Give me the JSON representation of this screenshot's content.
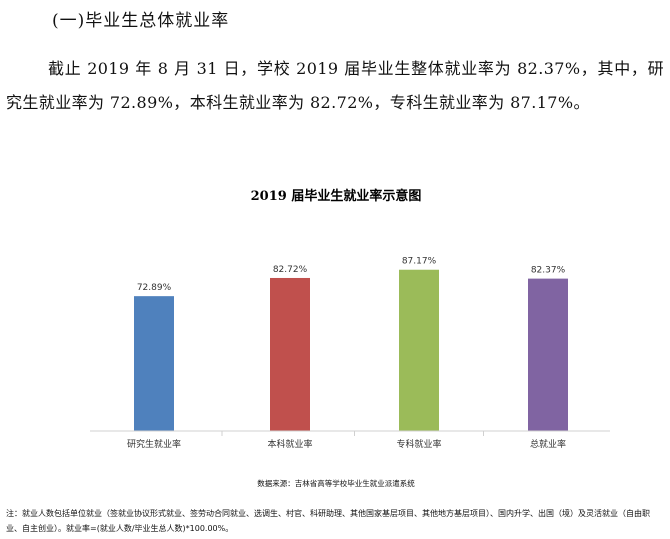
{
  "section": {
    "heading": "(一)毕业生总体就业率",
    "paragraph": "截止 2019 年 8 月 31 日，学校 2019 届毕业生整体就业率为 82.37%，其中，研究生就业率为 72.89%，本科生就业率为 82.72%，专科生就业率为 87.17%。"
  },
  "chart_data": {
    "type": "bar",
    "title": "2019 届毕业生就业率示意图",
    "categories": [
      "研究生就业率",
      "本科就业率",
      "专科就业率",
      "总就业率"
    ],
    "values": [
      72.89,
      82.72,
      87.17,
      82.37
    ],
    "value_labels": [
      "72.89%",
      "82.72%",
      "87.17%",
      "82.37%"
    ],
    "colors": [
      "#4f81bd",
      "#c0504d",
      "#9bbb59",
      "#8064a2"
    ],
    "ylim": [
      0,
      100
    ],
    "grid": false,
    "legend": "none"
  },
  "source": "数据来源：吉林省高等学校毕业生就业派遣系统",
  "note": "注：就业人数包括单位就业（签就业协议形式就业、签劳动合同就业、选调生、村官、科研助理、其他国家基层项目、其他地方基层项目）、国内升学、出国（境）及灵活就业（自由职业、自主创业）。就业率=(就业人数/毕业生总人数)*100.00%。"
}
